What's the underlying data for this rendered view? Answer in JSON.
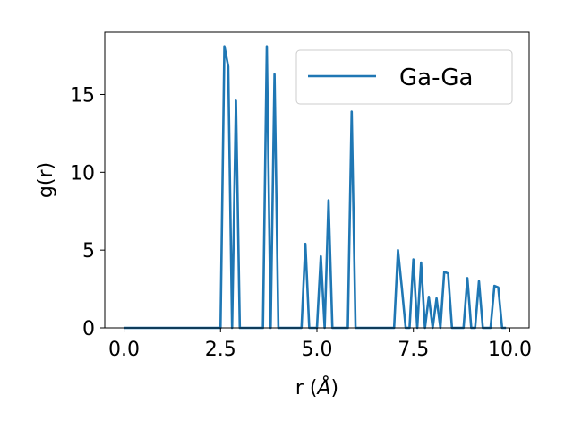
{
  "chart_data": {
    "type": "line",
    "xlabel_prefix": "r (",
    "xlabel_unit": "Å",
    "xlabel_suffix": ")",
    "ylabel": "g(r)",
    "xlim": [
      -0.5,
      10.5
    ],
    "ylim": [
      0,
      19
    ],
    "xticks": [
      0.0,
      2.5,
      5.0,
      7.5,
      10.0
    ],
    "xtick_labels": [
      "0.0",
      "2.5",
      "5.0",
      "7.5",
      "10.0"
    ],
    "yticks": [
      0,
      5,
      10,
      15
    ],
    "ytick_labels": [
      "0",
      "5",
      "10",
      "15"
    ],
    "grid": false,
    "legend_position": "top-right",
    "series": [
      {
        "name": "Ga-Ga",
        "color": "#1f77b4",
        "x": [
          0.0,
          0.1,
          0.2,
          0.3,
          0.4,
          0.5,
          0.6,
          0.7,
          0.8,
          0.9,
          1.0,
          1.1,
          1.2,
          1.3,
          1.4,
          1.5,
          1.6,
          1.7,
          1.8,
          1.9,
          2.0,
          2.1,
          2.2,
          2.3,
          2.4,
          2.5,
          2.6,
          2.7,
          2.8,
          2.9,
          3.0,
          3.1,
          3.2,
          3.3,
          3.4,
          3.5,
          3.6,
          3.7,
          3.8,
          3.9,
          4.0,
          4.1,
          4.2,
          4.3,
          4.4,
          4.5,
          4.6,
          4.7,
          4.8,
          4.9,
          5.0,
          5.1,
          5.2,
          5.3,
          5.4,
          5.5,
          5.6,
          5.7,
          5.8,
          5.9,
          6.0,
          6.1,
          6.2,
          6.3,
          6.4,
          6.5,
          6.6,
          6.7,
          6.8,
          6.9,
          7.0,
          7.1,
          7.2,
          7.3,
          7.4,
          7.5,
          7.6,
          7.7,
          7.8,
          7.9,
          8.0,
          8.1,
          8.2,
          8.3,
          8.4,
          8.5,
          8.6,
          8.7,
          8.8,
          8.9,
          9.0,
          9.1,
          9.2,
          9.3,
          9.4,
          9.5,
          9.6,
          9.7,
          9.8,
          9.9
        ],
        "y": [
          0,
          0,
          0,
          0,
          0,
          0,
          0,
          0,
          0,
          0,
          0,
          0,
          0,
          0,
          0,
          0,
          0,
          0,
          0,
          0,
          0,
          0,
          0,
          0,
          0,
          0,
          18.1,
          16.8,
          0,
          14.6,
          0,
          0,
          0,
          0,
          0,
          0,
          0,
          18.1,
          0,
          16.3,
          0,
          0,
          0,
          0,
          0,
          0,
          0,
          5.4,
          0,
          0,
          0,
          4.6,
          0,
          8.2,
          0,
          0,
          0,
          0,
          0,
          13.9,
          0,
          0,
          0,
          0,
          0,
          0,
          0,
          0,
          0,
          0,
          0,
          5.0,
          2.6,
          0,
          0,
          4.4,
          0,
          4.2,
          0,
          2.0,
          0,
          1.9,
          0,
          3.6,
          3.5,
          0,
          0,
          0,
          0,
          3.2,
          0,
          0,
          3.0,
          0,
          0,
          0,
          2.7,
          2.6,
          0,
          0
        ]
      }
    ]
  }
}
